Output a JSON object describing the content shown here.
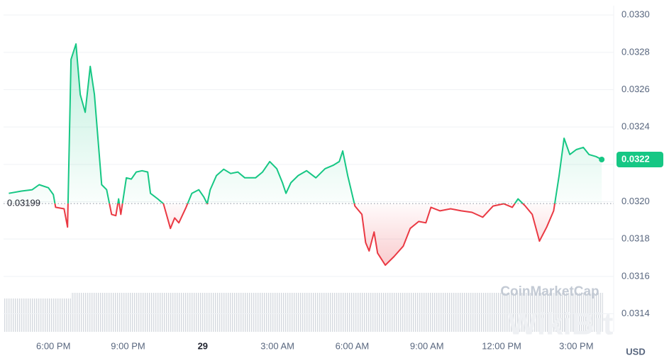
{
  "chart_data": {
    "type": "line",
    "x": [
      16.21,
      16.72,
      17.15,
      17.43,
      17.8,
      18.0,
      18.09,
      18.43,
      18.57,
      18.71,
      18.91,
      19.08,
      19.28,
      19.48,
      19.65,
      19.94,
      20.14,
      20.34,
      20.51,
      20.62,
      20.71,
      20.93,
      21.13,
      21.33,
      21.56,
      21.79,
      21.9,
      22.19,
      22.42,
      22.7,
      22.87,
      23.04,
      23.33,
      23.56,
      23.84,
      24.04,
      24.18,
      24.3,
      24.55,
      24.84,
      25.12,
      25.41,
      25.69,
      26.12,
      26.4,
      26.69,
      26.97,
      27.2,
      27.34,
      27.54,
      27.83,
      28.17,
      28.54,
      28.91,
      29.25,
      29.48,
      29.62,
      29.82,
      30.11,
      30.39,
      30.54,
      30.68,
      30.88,
      31.02,
      31.33,
      31.68,
      32.05,
      32.33,
      32.67,
      32.96,
      33.16,
      33.53,
      33.95,
      34.38,
      34.81,
      35.24,
      35.66,
      36.09,
      36.43,
      36.66,
      36.95,
      37.23,
      37.52,
      37.81,
      38.09,
      38.31,
      38.51,
      38.74,
      39.0,
      39.28,
      39.51,
      39.79,
      40.02
    ],
    "values": [
      0.032045,
      0.032057,
      0.032064,
      0.032091,
      0.032075,
      0.032038,
      0.03197,
      0.031962,
      0.031864,
      0.032762,
      0.032845,
      0.032574,
      0.032479,
      0.032725,
      0.032574,
      0.032091,
      0.032064,
      0.031932,
      0.031925,
      0.032015,
      0.031932,
      0.032128,
      0.032121,
      0.032159,
      0.032166,
      0.032159,
      0.032045,
      0.032015,
      0.031989,
      0.031857,
      0.031913,
      0.031887,
      0.03197,
      0.032045,
      0.032064,
      0.032026,
      0.031989,
      0.032064,
      0.03214,
      0.032174,
      0.032151,
      0.032159,
      0.032128,
      0.032128,
      0.032159,
      0.032215,
      0.032177,
      0.032102,
      0.032045,
      0.032102,
      0.03214,
      0.032166,
      0.032128,
      0.032177,
      0.032196,
      0.032215,
      0.032272,
      0.03214,
      0.031977,
      0.031932,
      0.031781,
      0.031736,
      0.031838,
      0.031725,
      0.03166,
      0.031706,
      0.031762,
      0.031857,
      0.031894,
      0.031887,
      0.03197,
      0.031951,
      0.031962,
      0.031951,
      0.031943,
      0.031917,
      0.031977,
      0.031989,
      0.03197,
      0.032015,
      0.031977,
      0.031932,
      0.031789,
      0.031864,
      0.031951,
      0.03214,
      0.03234,
      0.032253,
      0.032279,
      0.032291,
      0.032253,
      0.032242,
      0.032226
    ],
    "baseline": 0.03199,
    "last_price_label": "0.0322",
    "up_color": "#16c784",
    "down_color": "#ea3943",
    "xlim": [
      16.0,
      40.5
    ],
    "xticks": [
      {
        "value": 18,
        "label": "6:00 PM"
      },
      {
        "value": 21,
        "label": "9:00 PM"
      },
      {
        "value": 24,
        "label": "29"
      },
      {
        "value": 27,
        "label": "3:00 AM"
      },
      {
        "value": 30,
        "label": "6:00 AM"
      },
      {
        "value": 33,
        "label": "9:00 AM"
      },
      {
        "value": 36,
        "label": "12:00 PM"
      },
      {
        "value": 39,
        "label": "3:00 PM"
      }
    ],
    "ylim": [
      0.03125,
      0.03305
    ],
    "yticks": [
      0.0314,
      0.0316,
      0.0318,
      {
        "value": 0.032,
        "label": "0.0320"
      },
      0.0322,
      0.0324,
      0.0326,
      0.0328,
      {
        "value": 0.033,
        "label": "0.0330"
      }
    ],
    "y_axis_label": "USD",
    "grid": true,
    "watermarks": [
      "CoinMarketCap",
      "WikiBit"
    ]
  }
}
